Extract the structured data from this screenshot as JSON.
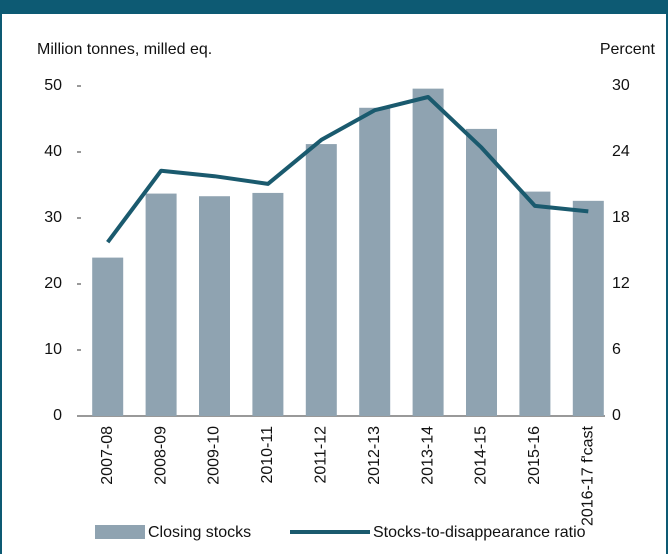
{
  "chart_data": {
    "type": "bar-line",
    "y_axis_label": "Million tonnes, milled eq.",
    "y2_axis_label": "Percent",
    "categories": [
      "2007-08",
      "2008-09",
      "2009-10",
      "2010-11",
      "2011-12",
      "2012-13",
      "2013-14",
      "2014-15",
      "2015-16",
      "2016-17 f'cast"
    ],
    "series": [
      {
        "name": "Closing stocks",
        "type": "bar",
        "color": "#8fa3b1",
        "values": [
          24,
          33.7,
          33.3,
          33.8,
          41.2,
          46.7,
          49.6,
          43.5,
          34,
          32.6
        ]
      },
      {
        "name": "Stocks-to-disappearance ratio",
        "type": "line",
        "axis": "y2",
        "color": "#1a5a6e",
        "values": [
          15.8,
          22.3,
          21.8,
          21.1,
          25.1,
          27.8,
          29.0,
          24.4,
          19.1,
          18.6
        ]
      }
    ],
    "ylim": [
      0,
      50
    ],
    "yticks": [
      0,
      10,
      20,
      30,
      40,
      50
    ],
    "y2lim": [
      0,
      30
    ],
    "y2ticks": [
      0,
      6,
      12,
      18,
      24,
      30
    ]
  }
}
